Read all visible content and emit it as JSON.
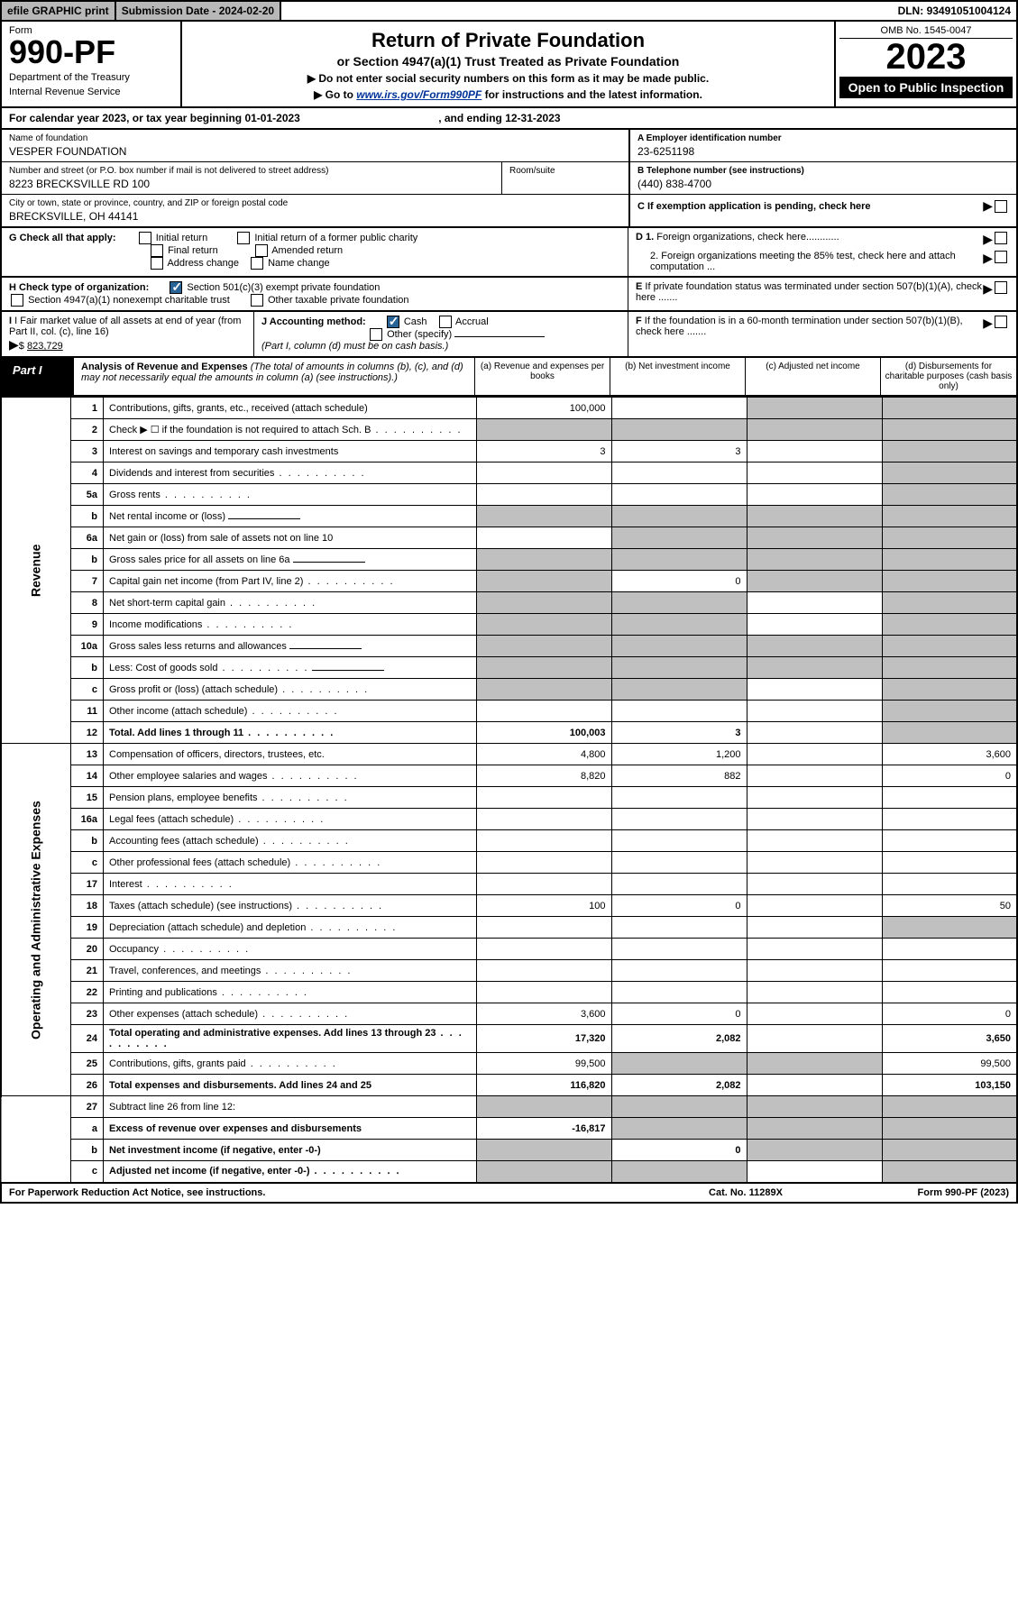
{
  "top": {
    "efile": "efile GRAPHIC print",
    "subdate_lbl": "Submission Date - ",
    "subdate": "2024-02-20",
    "dln_lbl": "DLN: ",
    "dln": "93491051004124"
  },
  "header": {
    "form_word": "Form",
    "form_no": "990-PF",
    "dept": "Department of the Treasury",
    "irs": "Internal Revenue Service",
    "title": "Return of Private Foundation",
    "subtitle": "or Section 4947(a)(1) Trust Treated as Private Foundation",
    "warn": "▶ Do not enter social security numbers on this form as it may be made public.",
    "goto_pre": "▶ Go to ",
    "goto_link": "www.irs.gov/Form990PF",
    "goto_post": " for instructions and the latest information.",
    "omb": "OMB No. 1545-0047",
    "year": "2023",
    "otp": "Open to Public Inspection"
  },
  "calyear": {
    "text_pre": "For calendar year 2023, or tax year beginning ",
    "begin": "01-01-2023",
    "text_mid": " , and ending ",
    "end": "12-31-2023"
  },
  "info": {
    "name_lbl": "Name of foundation",
    "name": "VESPER FOUNDATION",
    "addr_lbl": "Number and street (or P.O. box number if mail is not delivered to street address)",
    "addr": "8223 BRECKSVILLE RD 100",
    "room_lbl": "Room/suite",
    "city_lbl": "City or town, state or province, country, and ZIP or foreign postal code",
    "city": "BRECKSVILLE, OH  44141",
    "a_lbl": "A Employer identification number",
    "a_val": "23-6251198",
    "b_lbl": "B Telephone number (see instructions)",
    "b_val": "(440) 838-4700",
    "c_lbl": "C If exemption application is pending, check here",
    "d1_lbl": "D 1. Foreign organizations, check here............",
    "d2_lbl": "2. Foreign organizations meeting the 85% test, check here and attach computation ...",
    "e_lbl": "E If private foundation status was terminated under section 507(b)(1)(A), check here .......",
    "f_lbl": "F If the foundation is in a 60-month termination under section 507(b)(1)(B), check here .......",
    "g_lbl": "G Check all that apply:",
    "g_opts": [
      "Initial return",
      "Initial return of a former public charity",
      "Final return",
      "Amended return",
      "Address change",
      "Name change"
    ],
    "h_lbl": "H Check type of organization:",
    "h_opts": [
      "Section 501(c)(3) exempt private foundation",
      "Section 4947(a)(1) nonexempt charitable trust",
      "Other taxable private foundation"
    ],
    "i_lbl": "I Fair market value of all assets at end of year (from Part II, col. (c), line 16)",
    "i_val": "823,729",
    "j_lbl": "J Accounting method:",
    "j_opts": [
      "Cash",
      "Accrual",
      "Other (specify)"
    ],
    "j_note": "(Part I, column (d) must be on cash basis.)"
  },
  "part1": {
    "label": "Part I",
    "title": "Analysis of Revenue and Expenses",
    "title_note": " (The total of amounts in columns (b), (c), and (d) may not necessarily equal the amounts in column (a) (see instructions).)",
    "col_a": "(a)  Revenue and expenses per books",
    "col_b": "(b)  Net investment income",
    "col_c": "(c)  Adjusted net income",
    "col_d": "(d)  Disbursements for charitable purposes (cash basis only)"
  },
  "vlabels": {
    "revenue": "Revenue",
    "opex": "Operating and Administrative Expenses"
  },
  "rows": [
    {
      "sec": "rev",
      "n": "1",
      "d": "Contributions, gifts, grants, etc., received (attach schedule)",
      "a": "100,000",
      "b": "",
      "c": "g",
      "dd": "g"
    },
    {
      "sec": "rev",
      "n": "2",
      "d": "Check ▶ ☐ if the foundation is not required to attach Sch. B",
      "a": "g",
      "b": "g",
      "c": "g",
      "dd": "g",
      "dots": true
    },
    {
      "sec": "rev",
      "n": "3",
      "d": "Interest on savings and temporary cash investments",
      "a": "3",
      "b": "3",
      "c": "",
      "dd": "g"
    },
    {
      "sec": "rev",
      "n": "4",
      "d": "Dividends and interest from securities",
      "a": "",
      "b": "",
      "c": "",
      "dd": "g",
      "dots": true
    },
    {
      "sec": "rev",
      "n": "5a",
      "d": "Gross rents",
      "a": "",
      "b": "",
      "c": "",
      "dd": "g",
      "dots": true
    },
    {
      "sec": "rev",
      "n": "b",
      "d": "Net rental income or (loss)",
      "a": "g",
      "b": "g",
      "c": "g",
      "dd": "g",
      "inset": true
    },
    {
      "sec": "rev",
      "n": "6a",
      "d": "Net gain or (loss) from sale of assets not on line 10",
      "a": "",
      "b": "g",
      "c": "g",
      "dd": "g"
    },
    {
      "sec": "rev",
      "n": "b",
      "d": "Gross sales price for all assets on line 6a",
      "a": "g",
      "b": "g",
      "c": "g",
      "dd": "g",
      "inset": true
    },
    {
      "sec": "rev",
      "n": "7",
      "d": "Capital gain net income (from Part IV, line 2)",
      "a": "g",
      "b": "0",
      "c": "g",
      "dd": "g",
      "dots": true
    },
    {
      "sec": "rev",
      "n": "8",
      "d": "Net short-term capital gain",
      "a": "g",
      "b": "g",
      "c": "",
      "dd": "g",
      "dots": true
    },
    {
      "sec": "rev",
      "n": "9",
      "d": "Income modifications",
      "a": "g",
      "b": "g",
      "c": "",
      "dd": "g",
      "dots": true
    },
    {
      "sec": "rev",
      "n": "10a",
      "d": "Gross sales less returns and allowances",
      "a": "g",
      "b": "g",
      "c": "g",
      "dd": "g",
      "inset": true
    },
    {
      "sec": "rev",
      "n": "b",
      "d": "Less: Cost of goods sold",
      "a": "g",
      "b": "g",
      "c": "g",
      "dd": "g",
      "inset": true,
      "dots": true
    },
    {
      "sec": "rev",
      "n": "c",
      "d": "Gross profit or (loss) (attach schedule)",
      "a": "g",
      "b": "g",
      "c": "",
      "dd": "g",
      "dots": true
    },
    {
      "sec": "rev",
      "n": "11",
      "d": "Other income (attach schedule)",
      "a": "",
      "b": "",
      "c": "",
      "dd": "g",
      "dots": true
    },
    {
      "sec": "rev",
      "n": "12",
      "d": "Total. Add lines 1 through 11",
      "a": "100,003",
      "b": "3",
      "c": "",
      "dd": "g",
      "bold": true,
      "dots": true
    },
    {
      "sec": "op",
      "n": "13",
      "d": "Compensation of officers, directors, trustees, etc.",
      "a": "4,800",
      "b": "1,200",
      "c": "",
      "dd": "3,600"
    },
    {
      "sec": "op",
      "n": "14",
      "d": "Other employee salaries and wages",
      "a": "8,820",
      "b": "882",
      "c": "",
      "dd": "0",
      "dots": true
    },
    {
      "sec": "op",
      "n": "15",
      "d": "Pension plans, employee benefits",
      "a": "",
      "b": "",
      "c": "",
      "dd": "",
      "dots": true
    },
    {
      "sec": "op",
      "n": "16a",
      "d": "Legal fees (attach schedule)",
      "a": "",
      "b": "",
      "c": "",
      "dd": "",
      "dots": true
    },
    {
      "sec": "op",
      "n": "b",
      "d": "Accounting fees (attach schedule)",
      "a": "",
      "b": "",
      "c": "",
      "dd": "",
      "dots": true
    },
    {
      "sec": "op",
      "n": "c",
      "d": "Other professional fees (attach schedule)",
      "a": "",
      "b": "",
      "c": "",
      "dd": "",
      "dots": true
    },
    {
      "sec": "op",
      "n": "17",
      "d": "Interest",
      "a": "",
      "b": "",
      "c": "",
      "dd": "",
      "dots": true
    },
    {
      "sec": "op",
      "n": "18",
      "d": "Taxes (attach schedule) (see instructions)",
      "a": "100",
      "b": "0",
      "c": "",
      "dd": "50",
      "dots": true
    },
    {
      "sec": "op",
      "n": "19",
      "d": "Depreciation (attach schedule) and depletion",
      "a": "",
      "b": "",
      "c": "",
      "dd": "g",
      "dots": true
    },
    {
      "sec": "op",
      "n": "20",
      "d": "Occupancy",
      "a": "",
      "b": "",
      "c": "",
      "dd": "",
      "dots": true
    },
    {
      "sec": "op",
      "n": "21",
      "d": "Travel, conferences, and meetings",
      "a": "",
      "b": "",
      "c": "",
      "dd": "",
      "dots": true
    },
    {
      "sec": "op",
      "n": "22",
      "d": "Printing and publications",
      "a": "",
      "b": "",
      "c": "",
      "dd": "",
      "dots": true
    },
    {
      "sec": "op",
      "n": "23",
      "d": "Other expenses (attach schedule)",
      "a": "3,600",
      "b": "0",
      "c": "",
      "dd": "0",
      "dots": true
    },
    {
      "sec": "op",
      "n": "24",
      "d": "Total operating and administrative expenses. Add lines 13 through 23",
      "a": "17,320",
      "b": "2,082",
      "c": "",
      "dd": "3,650",
      "bold": true,
      "dots": true
    },
    {
      "sec": "op",
      "n": "25",
      "d": "Contributions, gifts, grants paid",
      "a": "99,500",
      "b": "g",
      "c": "g",
      "dd": "99,500",
      "dots": true
    },
    {
      "sec": "op",
      "n": "26",
      "d": "Total expenses and disbursements. Add lines 24 and 25",
      "a": "116,820",
      "b": "2,082",
      "c": "",
      "dd": "103,150",
      "bold": true
    },
    {
      "sec": "end",
      "n": "27",
      "d": "Subtract line 26 from line 12:",
      "a": "g",
      "b": "g",
      "c": "g",
      "dd": "g"
    },
    {
      "sec": "end",
      "n": "a",
      "d": "Excess of revenue over expenses and disbursements",
      "a": "-16,817",
      "b": "g",
      "c": "g",
      "dd": "g",
      "bold": true
    },
    {
      "sec": "end",
      "n": "b",
      "d": "Net investment income (if negative, enter -0-)",
      "a": "g",
      "b": "0",
      "c": "g",
      "dd": "g",
      "bold": true
    },
    {
      "sec": "end",
      "n": "c",
      "d": "Adjusted net income (if negative, enter -0-)",
      "a": "g",
      "b": "g",
      "c": "",
      "dd": "g",
      "bold": true,
      "dots": true
    }
  ],
  "footer": {
    "left": "For Paperwork Reduction Act Notice, see instructions.",
    "center": "Cat. No. 11289X",
    "right": "Form 990-PF (2023)"
  }
}
